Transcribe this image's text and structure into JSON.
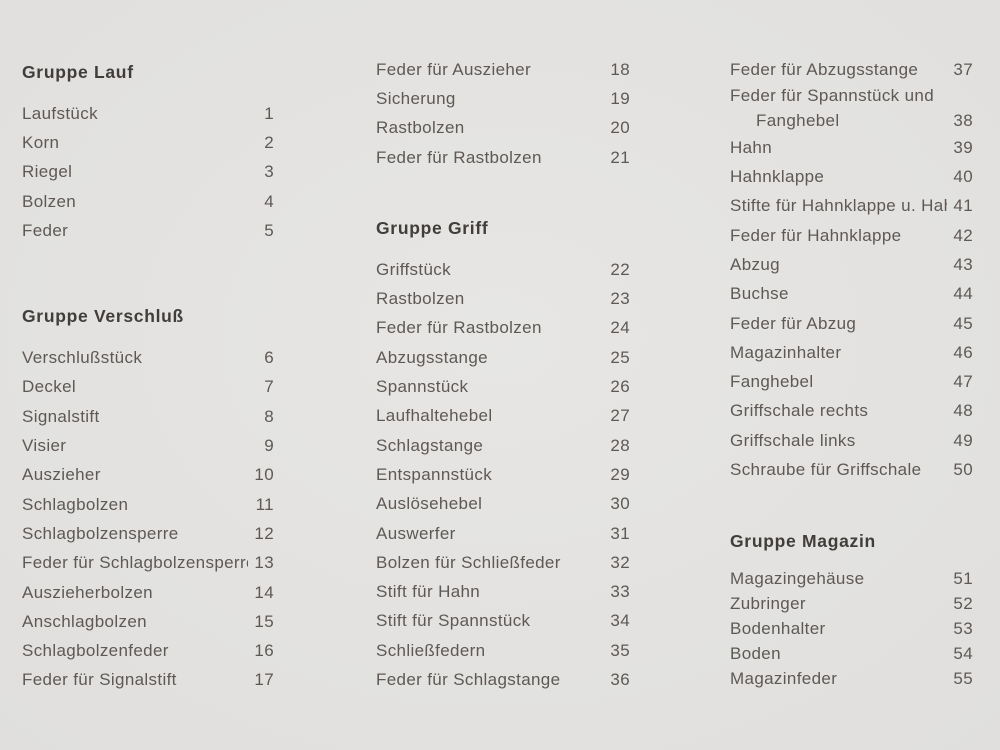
{
  "page": {
    "background_color": "#e4e3e1",
    "text_color": "#5e5955",
    "heading_color": "#403d3a"
  },
  "columns": [
    {
      "sections": [
        {
          "heading": "Gruppe Lauf",
          "items": [
            {
              "label": "Laufstück",
              "num": "1"
            },
            {
              "label": "Korn",
              "num": "2"
            },
            {
              "label": "Riegel",
              "num": "3"
            },
            {
              "label": "Bolzen",
              "num": "4"
            },
            {
              "label": "Feder",
              "num": "5"
            }
          ]
        },
        {
          "heading": "Gruppe Verschluß",
          "items": [
            {
              "label": "Verschlußstück",
              "num": "6"
            },
            {
              "label": "Deckel",
              "num": "7"
            },
            {
              "label": "Signalstift",
              "num": "8"
            },
            {
              "label": "Visier",
              "num": "9"
            },
            {
              "label": "Auszieher",
              "num": "10"
            },
            {
              "label": "Schlagbolzen",
              "num": "11"
            },
            {
              "label": "Schlagbolzensperre",
              "num": "12"
            },
            {
              "label": "Feder für Schlagbolzensperre",
              "num": "13"
            },
            {
              "label": "Auszieherbolzen",
              "num": "14"
            },
            {
              "label": "Anschlagbolzen",
              "num": "15"
            },
            {
              "label": "Schlagbolzenfeder",
              "num": "16"
            },
            {
              "label": "Feder für Signalstift",
              "num": "17"
            }
          ]
        }
      ]
    },
    {
      "sections": [
        {
          "heading": null,
          "items": [
            {
              "label": "Feder für Auszieher",
              "num": "18"
            },
            {
              "label": "Sicherung",
              "num": "19"
            },
            {
              "label": "Rastbolzen",
              "num": "20"
            },
            {
              "label": "Feder für Rastbolzen",
              "num": "21"
            }
          ]
        },
        {
          "heading": "Gruppe Griff",
          "items": [
            {
              "label": "Griffstück",
              "num": "22"
            },
            {
              "label": "Rastbolzen",
              "num": "23"
            },
            {
              "label": "Feder für Rastbolzen",
              "num": "24"
            },
            {
              "label": "Abzugsstange",
              "num": "25"
            },
            {
              "label": "Spannstück",
              "num": "26"
            },
            {
              "label": "Laufhaltehebel",
              "num": "27"
            },
            {
              "label": "Schlagstange",
              "num": "28"
            },
            {
              "label": "Entspannstück",
              "num": "29"
            },
            {
              "label": "Auslösehebel",
              "num": "30"
            },
            {
              "label": "Auswerfer",
              "num": "31"
            },
            {
              "label": "Bolzen für Schließfeder",
              "num": "32"
            },
            {
              "label": "Stift für Hahn",
              "num": "33"
            },
            {
              "label": "Stift für Spannstück",
              "num": "34"
            },
            {
              "label": "Schließfedern",
              "num": "35"
            },
            {
              "label": "Feder für Schlagstange",
              "num": "36"
            }
          ]
        }
      ]
    },
    {
      "sections": [
        {
          "heading": null,
          "items": [
            {
              "label": "Feder für Abzugsstange",
              "num": "37"
            },
            {
              "label": "Feder für Spannstück und",
              "label2": "Fanghebel",
              "num": "38"
            },
            {
              "label": "Hahn",
              "num": "39"
            },
            {
              "label": "Hahnklappe",
              "num": "40"
            },
            {
              "label": "Stifte für Hahnklappe u. Hahn",
              "num": "41"
            },
            {
              "label": "Feder für Hahnklappe",
              "num": "42"
            },
            {
              "label": "Abzug",
              "num": "43"
            },
            {
              "label": "Buchse",
              "num": "44"
            },
            {
              "label": "Feder für Abzug",
              "num": "45"
            },
            {
              "label": "Magazinhalter",
              "num": "46"
            },
            {
              "label": "Fanghebel",
              "num": "47"
            },
            {
              "label": "Griffschale rechts",
              "num": "48"
            },
            {
              "label": "Griffschale links",
              "num": "49"
            },
            {
              "label": "Schraube für Griffschale",
              "num": "50"
            }
          ]
        },
        {
          "heading": "Gruppe Magazin",
          "compact": true,
          "items": [
            {
              "label": "Magazingehäuse",
              "num": "51"
            },
            {
              "label": "Zubringer",
              "num": "52"
            },
            {
              "label": "Bodenhalter",
              "num": "53"
            },
            {
              "label": "Boden",
              "num": "54"
            },
            {
              "label": "Magazinfeder",
              "num": "55"
            }
          ]
        }
      ]
    }
  ]
}
